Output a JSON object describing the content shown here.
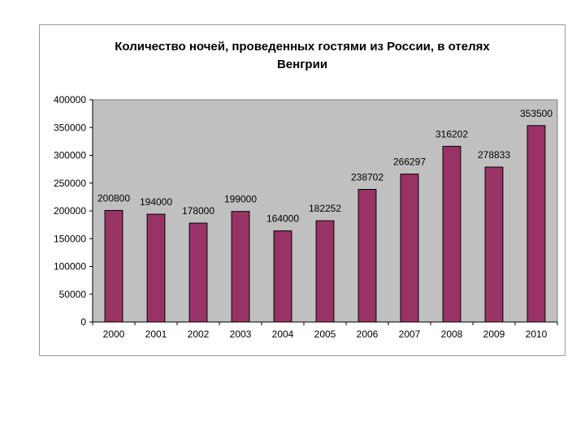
{
  "chart_data": {
    "type": "bar",
    "title_lines": [
      "Количество ночей, проведенных гостями из России, в отелях",
      "Венгрии"
    ],
    "categories": [
      "2000",
      "2001",
      "2002",
      "2003",
      "2004",
      "2005",
      "2006",
      "2007",
      "2008",
      "2009",
      "2010"
    ],
    "values": [
      200800,
      194000,
      178000,
      199000,
      164000,
      182252,
      238702,
      266297,
      316202,
      278833,
      353500
    ],
    "data_labels": [
      "200800",
      "194000",
      "178000",
      "199000",
      "164000",
      "182252",
      "238702",
      "266297",
      "316202",
      "278833",
      "353500"
    ],
    "ylim": [
      0,
      400000
    ],
    "yticks": [
      "0",
      "50000",
      "100000",
      "150000",
      "200000",
      "250000",
      "300000",
      "350000",
      "400000"
    ],
    "grid": false,
    "legend": "none",
    "colors": {
      "bar_fill": "#993366",
      "bar_stroke": "#000000",
      "plot_bg": "#c0c0c0",
      "frame": "#9a9a9a"
    }
  }
}
